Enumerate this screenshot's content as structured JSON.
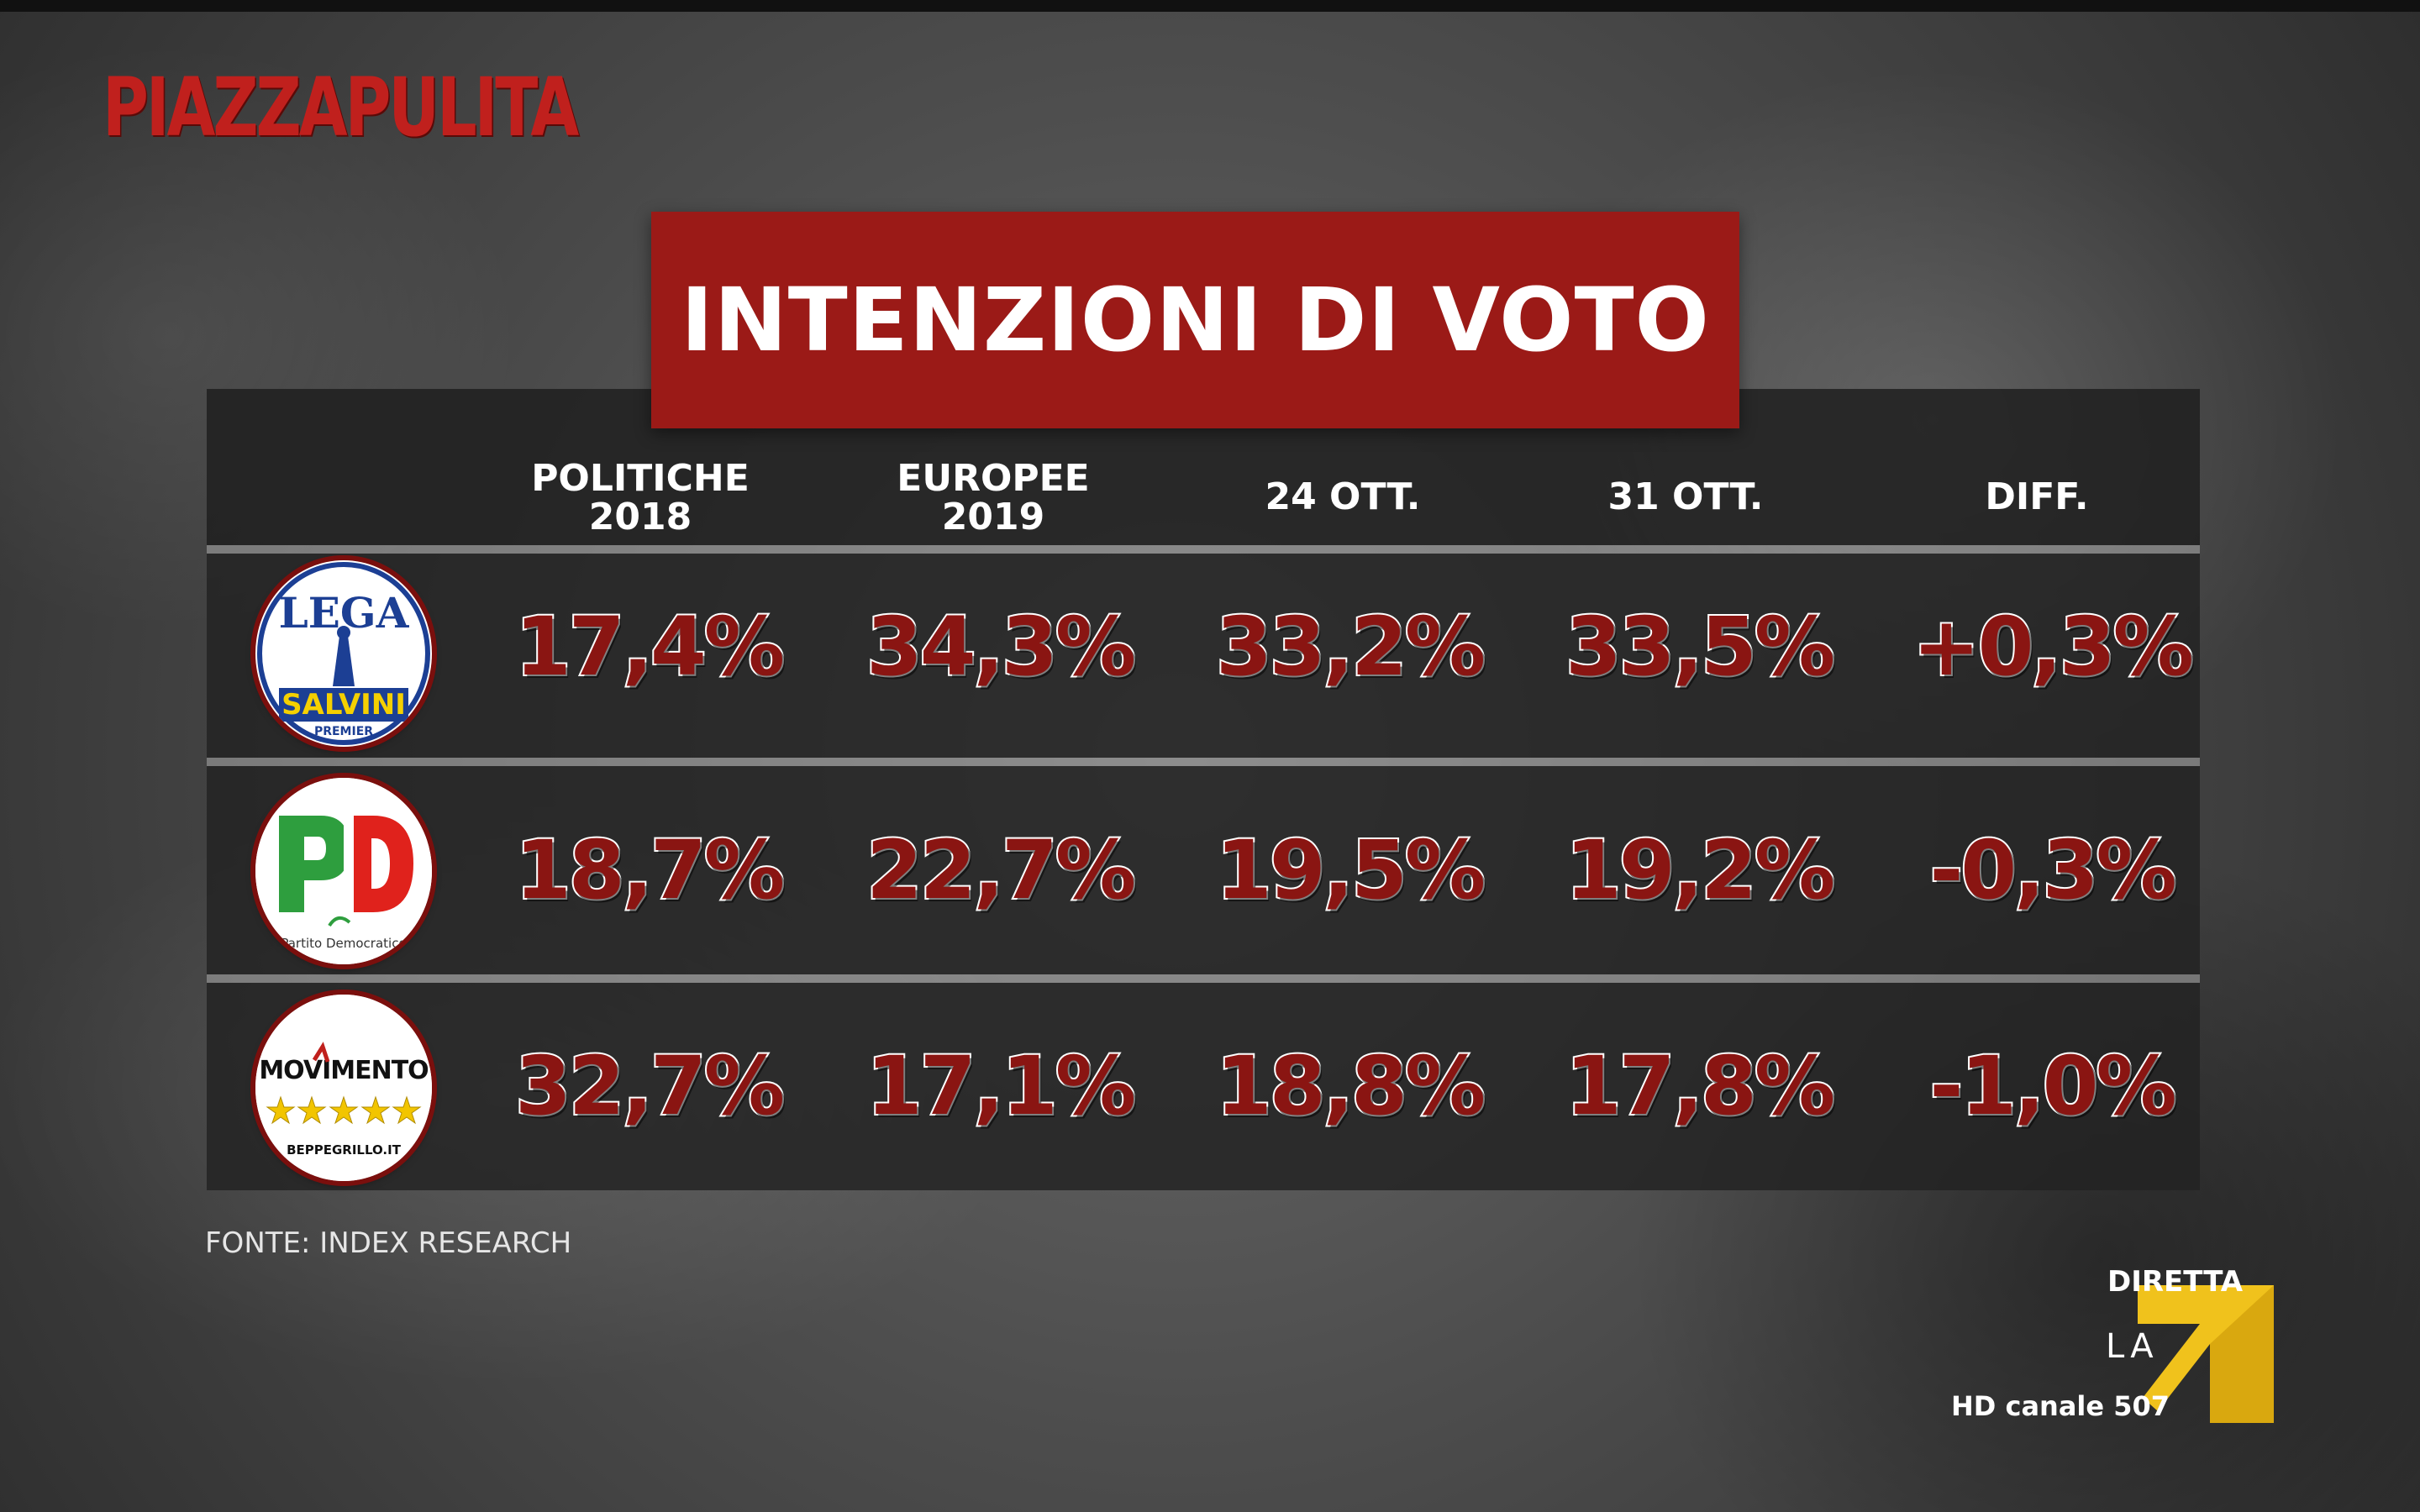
{
  "brand": {
    "name": "PIAZZAPULITA"
  },
  "title": "INTENZIONI DI VOTO",
  "source": "FONTE: INDEX RESEARCH",
  "broadcaster": {
    "live_label": "DIRETTA",
    "channel_text": "LA",
    "hd_label": "HD canale 507"
  },
  "logos": {
    "lega": {
      "top": "LEGA",
      "bottom": "SALVINI",
      "sub": "PREMIER"
    },
    "pd": {
      "caption": "Partito Democratico"
    },
    "m5s": {
      "name": "MOVIMENTO",
      "sub": "BEPPEGRILLO.IT"
    }
  },
  "chart_data": {
    "type": "table",
    "title": "INTENZIONI DI VOTO",
    "columns": [
      {
        "line1": "POLITICHE",
        "line2": "2018"
      },
      {
        "line1": "EUROPEE",
        "line2": "2019"
      },
      {
        "line1": "24 OTT.",
        "line2": ""
      },
      {
        "line1": "31 OTT.",
        "line2": ""
      },
      {
        "line1": "DIFF.",
        "line2": ""
      }
    ],
    "rows": [
      {
        "party": "lega",
        "values": [
          "17,4%",
          "34,3%",
          "33,2%",
          "33,5%",
          "+0,3%"
        ]
      },
      {
        "party": "pd",
        "values": [
          "18,7%",
          "22,7%",
          "19,5%",
          "19,2%",
          "-0,3%"
        ]
      },
      {
        "party": "m5s",
        "values": [
          "32,7%",
          "17,1%",
          "18,8%",
          "17,8%",
          "-1,0%"
        ]
      }
    ],
    "source": "FONTE: INDEX RESEARCH"
  }
}
